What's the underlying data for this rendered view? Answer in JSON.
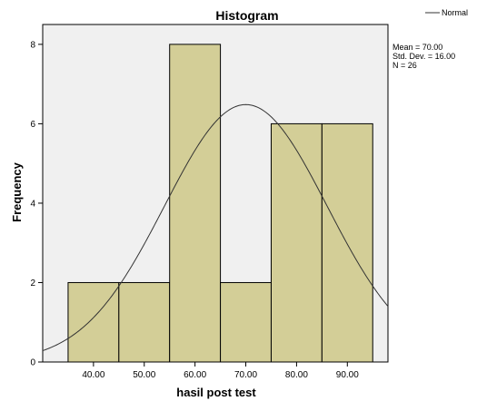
{
  "chart_data": {
    "type": "bar",
    "title": "Histogram",
    "xlabel": "hasil post test",
    "ylabel": "Frequency",
    "bin_width": 10,
    "categories": [
      "40.00",
      "50.00",
      "60.00",
      "70.00",
      "80.00",
      "90.00"
    ],
    "values": [
      2,
      2,
      8,
      2,
      6,
      6
    ],
    "xlim": [
      30,
      98
    ],
    "ylim": [
      0,
      8.5
    ],
    "x_ticks": [
      40,
      50,
      60,
      70,
      80,
      90
    ],
    "x_tick_labels": [
      "40.00",
      "50.00",
      "60.00",
      "70.00",
      "80.00",
      "90.00"
    ],
    "y_ticks": [
      0,
      2,
      4,
      6,
      8
    ],
    "y_tick_labels": [
      "0",
      "2",
      "4",
      "6",
      "8"
    ],
    "normal_curve": {
      "mean": 70.0,
      "std": 16.0,
      "n": 26
    },
    "legend": {
      "position": "top-right",
      "entries": [
        "Normal"
      ]
    },
    "stats": [
      "Mean = 70.00",
      "Std. Dev. = 16.00",
      "N = 26"
    ],
    "grid": false
  },
  "colors": {
    "bar_fill": "#D3CE97",
    "bar_stroke": "#000000",
    "plot_background": "#F0F0F0",
    "curve": "#333333"
  }
}
